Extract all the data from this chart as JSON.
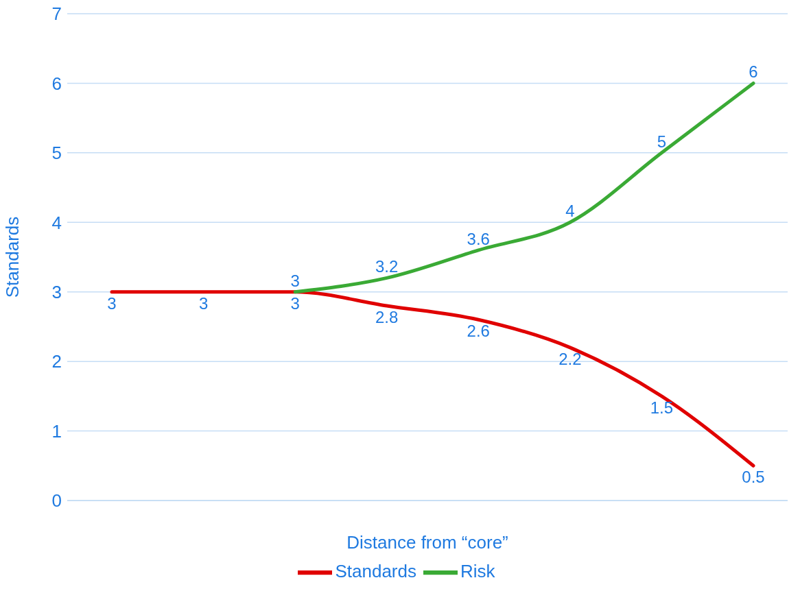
{
  "chart_data": {
    "type": "line",
    "xlabel": "Distance from “core”",
    "ylabel": "Standards",
    "categories": [
      null,
      null,
      null,
      null,
      null,
      null,
      null,
      null
    ],
    "series": [
      {
        "name": "Standards",
        "color": "#e00000",
        "values": [
          3,
          3,
          3,
          2.8,
          2.6,
          2.2,
          1.5,
          0.5
        ]
      },
      {
        "name": "Risk",
        "color": "#3aaa35",
        "values": [
          null,
          null,
          3,
          3.2,
          3.6,
          4,
          5,
          6
        ]
      }
    ],
    "ylim": [
      0,
      7
    ],
    "yticks": [
      0,
      1,
      2,
      3,
      4,
      5,
      6,
      7
    ],
    "grid": "y",
    "legend": "bottom",
    "tick_labels": "y",
    "data_labels": true,
    "marker": "none",
    "line_style": "solid"
  }
}
